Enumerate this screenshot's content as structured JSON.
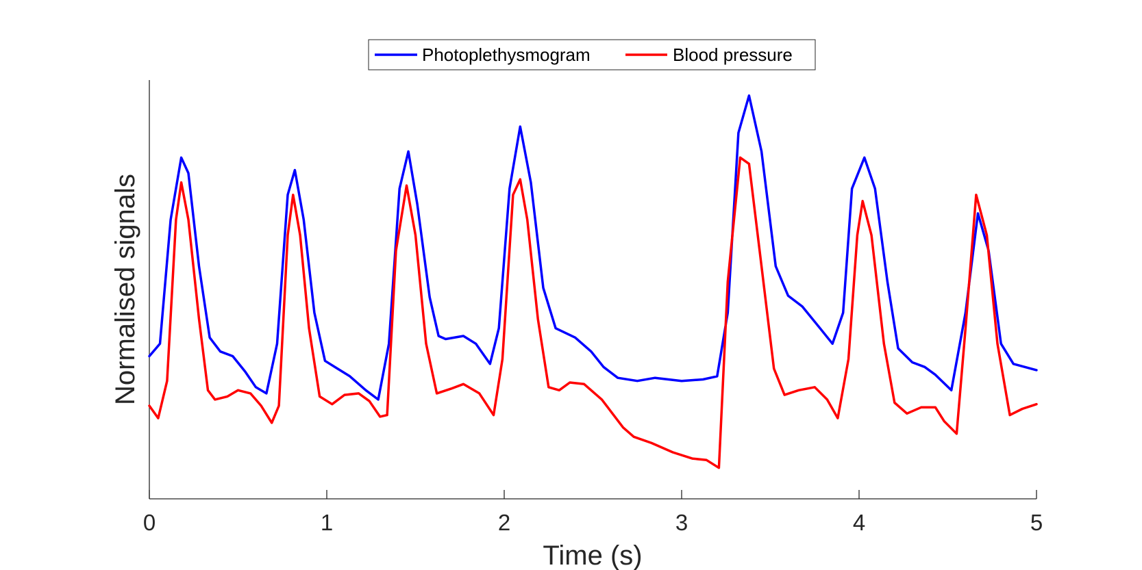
{
  "chart_data": {
    "type": "line",
    "title": "",
    "xlabel": "Time (s)",
    "ylabel": "Normalised signals",
    "xlim": [
      0,
      5
    ],
    "ylim": [
      -0.3,
      1.05
    ],
    "xticks": [
      0,
      1,
      2,
      3,
      4,
      5
    ],
    "xtick_labels": [
      "0",
      "1",
      "2",
      "3",
      "4",
      "5"
    ],
    "yticks_shown": false,
    "grid": false,
    "legend_position": "top-center",
    "series": [
      {
        "name": "Photoplethysmogram",
        "color": "#0000ff",
        "points": [
          [
            0.0,
            0.16
          ],
          [
            0.06,
            0.2
          ],
          [
            0.12,
            0.6
          ],
          [
            0.18,
            0.8
          ],
          [
            0.22,
            0.75
          ],
          [
            0.28,
            0.45
          ],
          [
            0.34,
            0.22
          ],
          [
            0.4,
            0.175
          ],
          [
            0.47,
            0.16
          ],
          [
            0.54,
            0.11
          ],
          [
            0.6,
            0.06
          ],
          [
            0.66,
            0.04
          ],
          [
            0.72,
            0.2
          ],
          [
            0.78,
            0.68
          ],
          [
            0.82,
            0.76
          ],
          [
            0.87,
            0.6
          ],
          [
            0.93,
            0.3
          ],
          [
            0.99,
            0.145
          ],
          [
            1.06,
            0.12
          ],
          [
            1.13,
            0.095
          ],
          [
            1.22,
            0.05
          ],
          [
            1.29,
            0.02
          ],
          [
            1.35,
            0.2
          ],
          [
            1.41,
            0.7
          ],
          [
            1.46,
            0.82
          ],
          [
            1.51,
            0.65
          ],
          [
            1.58,
            0.35
          ],
          [
            1.63,
            0.225
          ],
          [
            1.67,
            0.215
          ],
          [
            1.77,
            0.225
          ],
          [
            1.84,
            0.2
          ],
          [
            1.92,
            0.135
          ],
          [
            1.97,
            0.25
          ],
          [
            2.03,
            0.7
          ],
          [
            2.09,
            0.9
          ],
          [
            2.15,
            0.72
          ],
          [
            2.22,
            0.38
          ],
          [
            2.29,
            0.25
          ],
          [
            2.4,
            0.22
          ],
          [
            2.49,
            0.175
          ],
          [
            2.56,
            0.125
          ],
          [
            2.64,
            0.09
          ],
          [
            2.75,
            0.08
          ],
          [
            2.85,
            0.09
          ],
          [
            3.0,
            0.08
          ],
          [
            3.12,
            0.085
          ],
          [
            3.2,
            0.095
          ],
          [
            3.26,
            0.3
          ],
          [
            3.32,
            0.88
          ],
          [
            3.38,
            1.0
          ],
          [
            3.45,
            0.82
          ],
          [
            3.53,
            0.45
          ],
          [
            3.6,
            0.355
          ],
          [
            3.68,
            0.32
          ],
          [
            3.78,
            0.25
          ],
          [
            3.85,
            0.2
          ],
          [
            3.91,
            0.3
          ],
          [
            3.96,
            0.7
          ],
          [
            4.03,
            0.8
          ],
          [
            4.09,
            0.7
          ],
          [
            4.16,
            0.4
          ],
          [
            4.22,
            0.185
          ],
          [
            4.3,
            0.14
          ],
          [
            4.37,
            0.125
          ],
          [
            4.43,
            0.1
          ],
          [
            4.52,
            0.05
          ],
          [
            4.6,
            0.3
          ],
          [
            4.67,
            0.62
          ],
          [
            4.73,
            0.5
          ],
          [
            4.8,
            0.2
          ],
          [
            4.87,
            0.135
          ],
          [
            5.0,
            0.115
          ]
        ]
      },
      {
        "name": "Blood pressure",
        "color": "#ff0000",
        "points": [
          [
            0.0,
            0.0
          ],
          [
            0.05,
            -0.04
          ],
          [
            0.1,
            0.08
          ],
          [
            0.15,
            0.6
          ],
          [
            0.18,
            0.72
          ],
          [
            0.22,
            0.6
          ],
          [
            0.28,
            0.28
          ],
          [
            0.33,
            0.05
          ],
          [
            0.37,
            0.02
          ],
          [
            0.44,
            0.03
          ],
          [
            0.5,
            0.05
          ],
          [
            0.57,
            0.04
          ],
          [
            0.63,
            0.0
          ],
          [
            0.69,
            -0.055
          ],
          [
            0.73,
            0.0
          ],
          [
            0.78,
            0.55
          ],
          [
            0.81,
            0.68
          ],
          [
            0.85,
            0.55
          ],
          [
            0.9,
            0.25
          ],
          [
            0.96,
            0.03
          ],
          [
            1.03,
            0.005
          ],
          [
            1.1,
            0.035
          ],
          [
            1.18,
            0.04
          ],
          [
            1.24,
            0.015
          ],
          [
            1.3,
            -0.035
          ],
          [
            1.34,
            -0.03
          ],
          [
            1.39,
            0.5
          ],
          [
            1.45,
            0.71
          ],
          [
            1.5,
            0.55
          ],
          [
            1.56,
            0.2
          ],
          [
            1.62,
            0.04
          ],
          [
            1.7,
            0.055
          ],
          [
            1.77,
            0.07
          ],
          [
            1.86,
            0.04
          ],
          [
            1.94,
            -0.03
          ],
          [
            1.99,
            0.15
          ],
          [
            2.05,
            0.68
          ],
          [
            2.09,
            0.73
          ],
          [
            2.13,
            0.6
          ],
          [
            2.19,
            0.28
          ],
          [
            2.25,
            0.06
          ],
          [
            2.31,
            0.05
          ],
          [
            2.37,
            0.075
          ],
          [
            2.45,
            0.07
          ],
          [
            2.55,
            0.02
          ],
          [
            2.67,
            -0.07
          ],
          [
            2.73,
            -0.1
          ],
          [
            2.83,
            -0.12
          ],
          [
            2.95,
            -0.15
          ],
          [
            3.06,
            -0.17
          ],
          [
            3.14,
            -0.175
          ],
          [
            3.21,
            -0.2
          ],
          [
            3.26,
            0.4
          ],
          [
            3.33,
            0.8
          ],
          [
            3.38,
            0.78
          ],
          [
            3.45,
            0.45
          ],
          [
            3.52,
            0.12
          ],
          [
            3.58,
            0.035
          ],
          [
            3.66,
            0.05
          ],
          [
            3.75,
            0.06
          ],
          [
            3.82,
            0.02
          ],
          [
            3.88,
            -0.04
          ],
          [
            3.94,
            0.15
          ],
          [
            3.99,
            0.55
          ],
          [
            4.02,
            0.66
          ],
          [
            4.07,
            0.55
          ],
          [
            4.14,
            0.2
          ],
          [
            4.2,
            0.01
          ],
          [
            4.27,
            -0.025
          ],
          [
            4.35,
            -0.005
          ],
          [
            4.43,
            -0.005
          ],
          [
            4.48,
            -0.05
          ],
          [
            4.55,
            -0.09
          ],
          [
            4.6,
            0.25
          ],
          [
            4.66,
            0.68
          ],
          [
            4.72,
            0.55
          ],
          [
            4.78,
            0.2
          ],
          [
            4.85,
            -0.03
          ],
          [
            4.92,
            -0.01
          ],
          [
            5.0,
            0.005
          ]
        ]
      }
    ]
  }
}
